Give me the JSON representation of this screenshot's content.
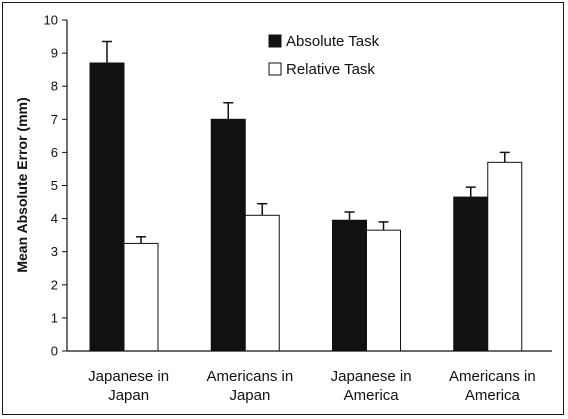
{
  "chart_data": {
    "type": "bar",
    "categories": [
      [
        "Japanese in",
        "Japan"
      ],
      [
        "Americans in",
        "Japan"
      ],
      [
        "Japanese in",
        "America"
      ],
      [
        "Americans in",
        "America"
      ]
    ],
    "series": [
      {
        "name": "Absolute Task",
        "color": "#111111",
        "values": [
          8.7,
          7.0,
          3.95,
          4.65
        ],
        "error": [
          0.65,
          0.5,
          0.25,
          0.3
        ]
      },
      {
        "name": "Relative Task",
        "color": "#ffffff",
        "values": [
          3.25,
          4.1,
          3.65,
          5.7
        ],
        "error": [
          0.2,
          0.35,
          0.25,
          0.3
        ]
      }
    ],
    "xlabel": "",
    "ylabel": "Mean Absolute Error (mm)",
    "ylim": [
      0,
      10
    ],
    "yticks": [
      "0",
      "1",
      "2",
      "3",
      "4",
      "5",
      "6",
      "7",
      "8",
      "9",
      "10"
    ],
    "grid": false,
    "legend_position": "top-center"
  }
}
